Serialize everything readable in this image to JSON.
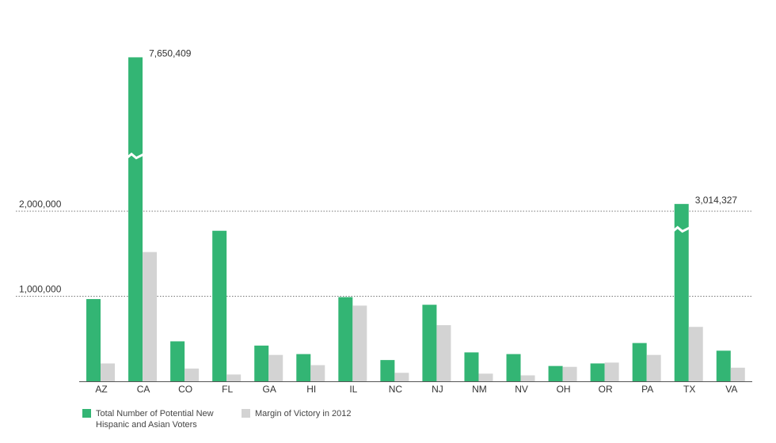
{
  "chart_data": {
    "type": "bar",
    "categories": [
      "AZ",
      "CA",
      "CO",
      "FL",
      "GA",
      "HI",
      "IL",
      "NC",
      "NJ",
      "NM",
      "NV",
      "OH",
      "OR",
      "PA",
      "TX",
      "VA"
    ],
    "series": [
      {
        "name": "Total Number of Potential New Hispanic and Asian Voters",
        "color": "#33b574",
        "values": [
          967000,
          7650409,
          470000,
          1770000,
          420000,
          320000,
          990000,
          250000,
          900000,
          340000,
          320000,
          180000,
          210000,
          450000,
          3014327,
          360000
        ],
        "value_labels": [
          null,
          "7,650,409",
          null,
          null,
          null,
          null,
          null,
          null,
          null,
          null,
          null,
          null,
          null,
          null,
          "3,014,327",
          null
        ]
      },
      {
        "name": "Margin of Victory in 2012",
        "color": "#d3d3d3",
        "values": [
          210000,
          1520000,
          150000,
          80000,
          310000,
          190000,
          890000,
          100000,
          660000,
          90000,
          70000,
          170000,
          220000,
          310000,
          640000,
          160000
        ]
      }
    ],
    "ylim": [
      0,
      2000000
    ],
    "yticks": [
      {
        "value": 1000000,
        "label": "1,000,000"
      },
      {
        "value": 2000000,
        "label": "2,000,000"
      }
    ],
    "grid": true
  }
}
